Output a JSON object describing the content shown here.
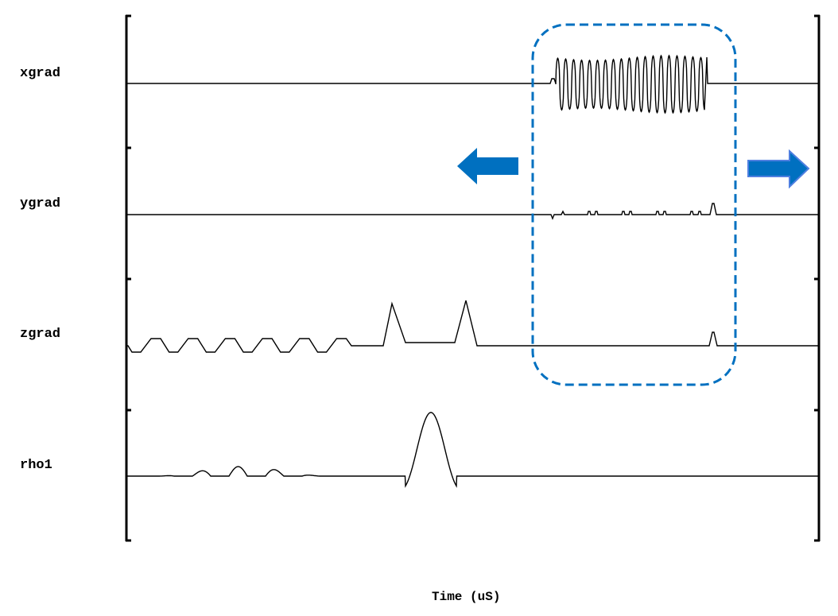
{
  "channels": [
    {
      "label": "xgrad"
    },
    {
      "label": "ygrad"
    },
    {
      "label": "zgrad"
    },
    {
      "label": "rho1"
    }
  ],
  "xaxis_label": "Time (uS)",
  "colors": {
    "trace": "#000000",
    "highlight": "#0070c0",
    "arrow_left": "#0070c0",
    "arrow_right_fill": "#0070c0",
    "arrow_right_border": "#4f7fe0"
  },
  "annotations": {
    "highlight_box": "dashed-rounded-rectangle",
    "arrows": [
      "arrow-left-icon",
      "arrow-right-icon"
    ]
  }
}
